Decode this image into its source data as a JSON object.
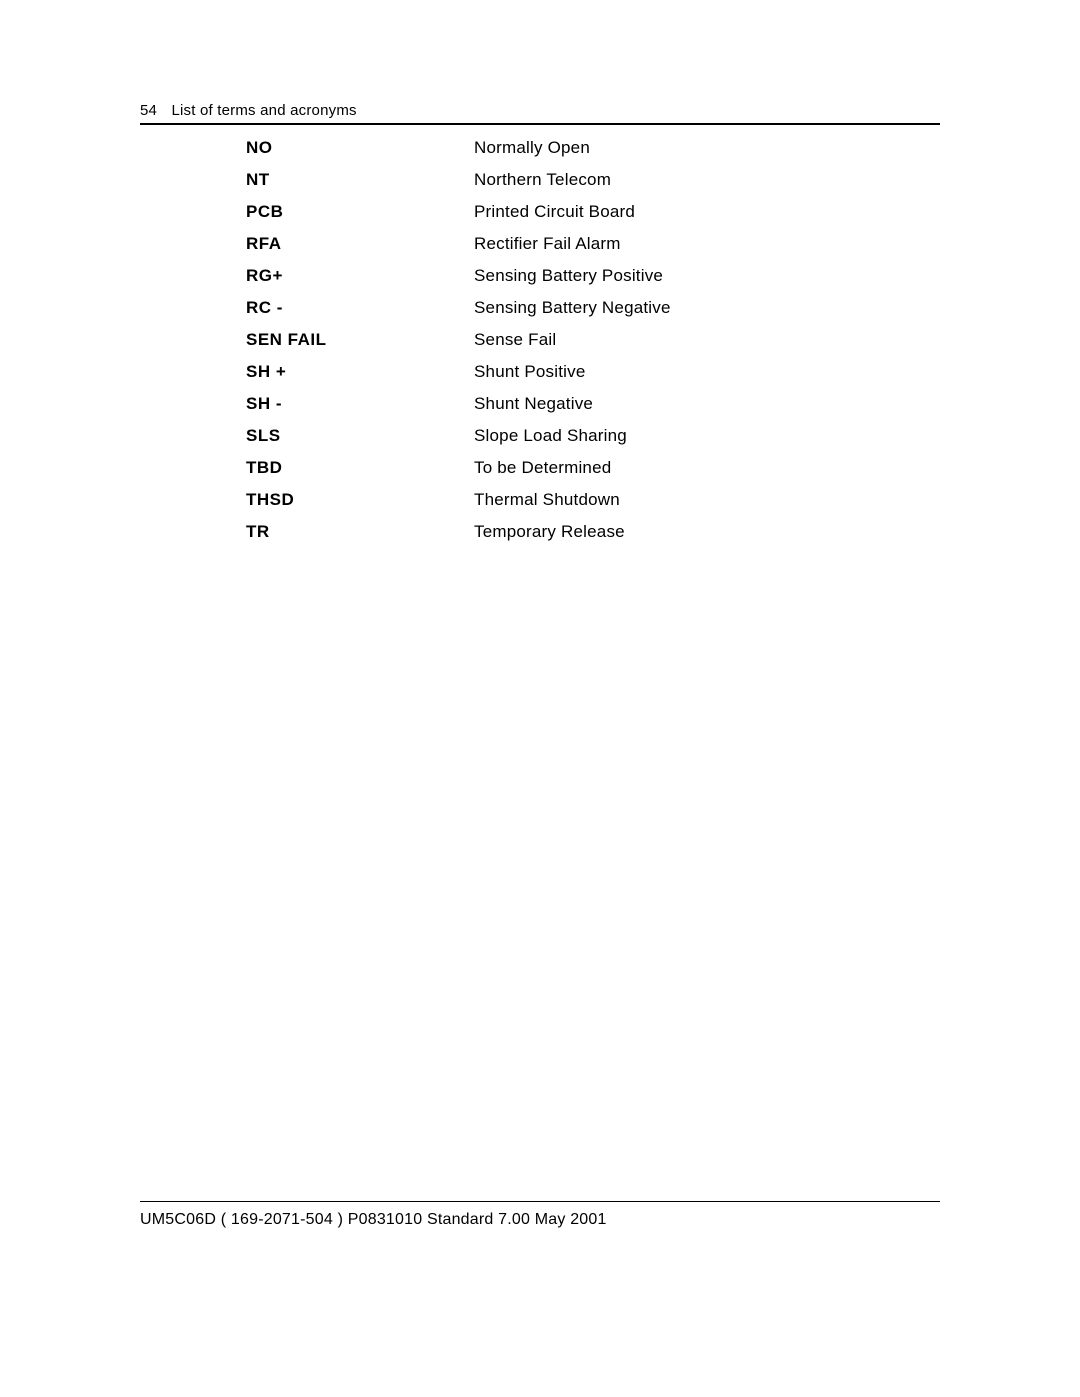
{
  "header": {
    "page_number": "54",
    "title": "List of terms and acronyms"
  },
  "terms": [
    {
      "abbr": "NO",
      "defn": "Normally Open"
    },
    {
      "abbr": "NT",
      "defn": "Northern Telecom"
    },
    {
      "abbr": "PCB",
      "defn": "Printed Circuit Board"
    },
    {
      "abbr": "RFA",
      "defn": "Rectifier Fail Alarm"
    },
    {
      "abbr": "RG+",
      "defn": "Sensing Battery Positive"
    },
    {
      "abbr": "RC -",
      "defn": "Sensing Battery Negative"
    },
    {
      "abbr": "SEN FAIL",
      "defn": "Sense Fail"
    },
    {
      "abbr": "SH +",
      "defn": "Shunt Positive"
    },
    {
      "abbr": "SH -",
      "defn": "Shunt Negative"
    },
    {
      "abbr": "SLS",
      "defn": "Slope Load Sharing"
    },
    {
      "abbr": "TBD",
      "defn": "To be Determined"
    },
    {
      "abbr": "THSD",
      "defn": "Thermal Shutdown"
    },
    {
      "abbr": "TR",
      "defn": "Temporary Release"
    }
  ],
  "footer": {
    "text": "UM5C06D   ( 169-2071-504 )   P0831010   Standard 7.00   May 2001"
  }
}
